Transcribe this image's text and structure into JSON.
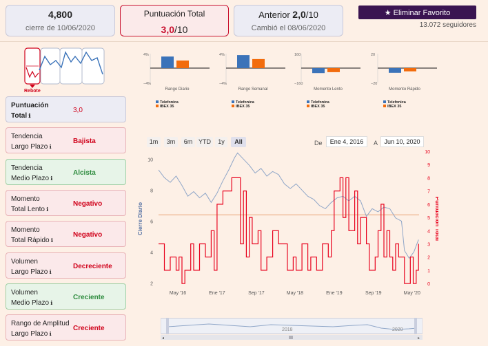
{
  "price_card": {
    "value": "4,800",
    "caption": "cierre de 10/06/2020"
  },
  "total_card": {
    "label": "Puntuación Total",
    "score": "3,0",
    "scale": "/10"
  },
  "prev_card": {
    "prefix": "Anterior",
    "score": "2,0",
    "scale": "/10",
    "caption": "Cambió el 08/06/2020"
  },
  "favorite_button": {
    "icon": "star-icon",
    "label": "★ Eliminar Favorito"
  },
  "followers": "13.072 seguidores",
  "rebote_label": "Rebote",
  "indicators": [
    {
      "name_line1": "Puntuación",
      "name_line2": "Total",
      "value": "3,0",
      "status": "blue"
    },
    {
      "name_line1": "Tendencia",
      "name_line2": "Largo Plazo",
      "value": "Bajista",
      "status": "red"
    },
    {
      "name_line1": "Tendencia",
      "name_line2": "Medio Plazo",
      "value": "Alcista",
      "status": "green"
    },
    {
      "name_line1": "Momento",
      "name_line2": "Total Lento",
      "value": "Negativo",
      "status": "red"
    },
    {
      "name_line1": "Momento",
      "name_line2": "Total Rápido",
      "value": "Negativo",
      "status": "red"
    },
    {
      "name_line1": "Volumen",
      "name_line2": "Largo Plazo",
      "value": "Decreciente",
      "status": "red"
    },
    {
      "name_line1": "Volumen",
      "name_line2": "Medio Plazo",
      "value": "Creciente",
      "status": "green"
    },
    {
      "name_line1": "Rango de Amplitud",
      "name_line2": "Largo Plazo",
      "value": "Creciente",
      "status": "red"
    }
  ],
  "info_icon": "ℹ",
  "colors": {
    "telefonica": "#3b73b9",
    "ibex": "#f26c0d",
    "score_line": "#e8001c",
    "price_line": "#8fa6c8",
    "accent": "#3a1451"
  },
  "chart_data": [
    {
      "type": "bar",
      "title": "Rango Diario",
      "categories": [
        "Telefonica",
        "IBEX 35"
      ],
      "values": [
        3.2,
        2.1
      ],
      "ylim": [
        -4,
        4
      ],
      "tick_top": "4%",
      "tick_bottom": "−4%"
    },
    {
      "type": "bar",
      "title": "Rango Semanal",
      "categories": [
        "Telefonica",
        "IBEX 35"
      ],
      "values": [
        3.6,
        2.5
      ],
      "ylim": [
        -4,
        4
      ],
      "tick_top": "4%",
      "tick_bottom": "−4%"
    },
    {
      "type": "bar",
      "title": "Momento Lento",
      "categories": [
        "Telefonica",
        "IBEX 35"
      ],
      "values": [
        -55,
        -45
      ],
      "ylim": [
        -160,
        160
      ],
      "tick_top": "160",
      "tick_bottom": "−160"
    },
    {
      "type": "bar",
      "title": "Momento Rápido",
      "categories": [
        "Telefonica",
        "IBEX 35"
      ],
      "values": [
        -6.5,
        -4.5
      ],
      "ylim": [
        -20,
        20
      ],
      "tick_top": "20",
      "tick_bottom": "−20"
    },
    {
      "type": "line",
      "range_buttons": [
        "1m",
        "3m",
        "6m",
        "YTD",
        "1y",
        "All"
      ],
      "active_range": "All",
      "date_from_label": "De",
      "date_from": "Ene 4, 2016",
      "date_to_label": "A",
      "date_to": "Jun 10, 2020",
      "ylabel": "Cierre Diario",
      "y2label": "Puntuación Total",
      "ylim": [
        1.8,
        10.5
      ],
      "y2lim": [
        -0.2,
        10
      ],
      "yticks": [
        2,
        4,
        6,
        8,
        10
      ],
      "y2ticks": [
        0,
        1,
        2,
        3,
        4,
        5,
        6,
        7,
        8,
        9,
        10
      ],
      "xticks": [
        "May '16",
        "Ene '17",
        "Sep '17",
        "May '18",
        "Ene '19",
        "Sep '19",
        "May '20"
      ],
      "reference_line": 6.4,
      "navigator_labels": [
        "2018",
        "2020"
      ],
      "series": [
        {
          "name": "Cierre Diario",
          "axis": "left",
          "points": [
            [
              2016.0,
              9.3
            ],
            [
              2016.1,
              8.8
            ],
            [
              2016.2,
              8.5
            ],
            [
              2016.3,
              8.9
            ],
            [
              2016.4,
              8.3
            ],
            [
              2016.5,
              7.6
            ],
            [
              2016.6,
              7.9
            ],
            [
              2016.7,
              7.5
            ],
            [
              2016.8,
              7.8
            ],
            [
              2016.9,
              7.2
            ],
            [
              2017.0,
              7.8
            ],
            [
              2017.1,
              8.6
            ],
            [
              2017.2,
              9.3
            ],
            [
              2017.3,
              10.1
            ],
            [
              2017.35,
              10.4
            ],
            [
              2017.45,
              10.0
            ],
            [
              2017.55,
              9.6
            ],
            [
              2017.65,
              9.1
            ],
            [
              2017.75,
              9.4
            ],
            [
              2017.85,
              8.9
            ],
            [
              2017.95,
              9.2
            ],
            [
              2018.05,
              9.0
            ],
            [
              2018.15,
              8.4
            ],
            [
              2018.25,
              8.1
            ],
            [
              2018.35,
              8.4
            ],
            [
              2018.45,
              8.0
            ],
            [
              2018.55,
              7.6
            ],
            [
              2018.65,
              7.4
            ],
            [
              2018.75,
              7.0
            ],
            [
              2018.85,
              6.8
            ],
            [
              2018.95,
              7.2
            ],
            [
              2019.05,
              7.5
            ],
            [
              2019.15,
              7.6
            ],
            [
              2019.25,
              7.3
            ],
            [
              2019.35,
              7.6
            ],
            [
              2019.45,
              7.3
            ],
            [
              2019.55,
              6.3
            ],
            [
              2019.65,
              6.8
            ],
            [
              2019.75,
              6.6
            ],
            [
              2019.85,
              6.9
            ],
            [
              2019.95,
              6.8
            ],
            [
              2020.05,
              6.2
            ],
            [
              2020.15,
              6.0
            ],
            [
              2020.2,
              4.1
            ],
            [
              2020.28,
              3.6
            ],
            [
              2020.36,
              4.0
            ],
            [
              2020.44,
              4.8
            ]
          ]
        },
        {
          "name": "Puntuación Total",
          "axis": "right",
          "step": true,
          "points": [
            [
              2016.0,
              3
            ],
            [
              2016.1,
              1
            ],
            [
              2016.2,
              2
            ],
            [
              2016.3,
              1
            ],
            [
              2016.35,
              2
            ],
            [
              2016.4,
              0
            ],
            [
              2016.45,
              1
            ],
            [
              2016.55,
              3
            ],
            [
              2016.6,
              1
            ],
            [
              2016.7,
              3
            ],
            [
              2016.8,
              2
            ],
            [
              2016.9,
              4
            ],
            [
              2016.95,
              1
            ],
            [
              2017.0,
              6
            ],
            [
              2017.1,
              7
            ],
            [
              2017.25,
              8
            ],
            [
              2017.4,
              3
            ],
            [
              2017.45,
              7
            ],
            [
              2017.5,
              2
            ],
            [
              2017.55,
              5
            ],
            [
              2017.6,
              3
            ],
            [
              2017.7,
              4
            ],
            [
              2017.75,
              1
            ],
            [
              2017.85,
              2
            ],
            [
              2017.95,
              4
            ],
            [
              2018.05,
              3
            ],
            [
              2018.2,
              1
            ],
            [
              2018.3,
              2
            ],
            [
              2018.35,
              1
            ],
            [
              2018.45,
              3
            ],
            [
              2018.55,
              1
            ],
            [
              2018.6,
              2
            ],
            [
              2018.7,
              1
            ],
            [
              2018.8,
              3
            ],
            [
              2018.9,
              2
            ],
            [
              2018.95,
              4
            ],
            [
              2019.0,
              7
            ],
            [
              2019.1,
              8
            ],
            [
              2019.15,
              5
            ],
            [
              2019.2,
              8
            ],
            [
              2019.25,
              4
            ],
            [
              2019.35,
              7
            ],
            [
              2019.4,
              3
            ],
            [
              2019.45,
              5
            ],
            [
              2019.55,
              3
            ],
            [
              2019.6,
              1
            ],
            [
              2019.7,
              2
            ],
            [
              2019.75,
              4
            ],
            [
              2019.8,
              6
            ],
            [
              2019.85,
              2
            ],
            [
              2019.9,
              4
            ],
            [
              2019.95,
              2
            ],
            [
              2020.0,
              1
            ],
            [
              2020.05,
              3
            ],
            [
              2020.1,
              2
            ],
            [
              2020.2,
              0
            ],
            [
              2020.3,
              2
            ],
            [
              2020.35,
              0
            ],
            [
              2020.4,
              1
            ],
            [
              2020.44,
              3
            ]
          ]
        }
      ]
    }
  ]
}
